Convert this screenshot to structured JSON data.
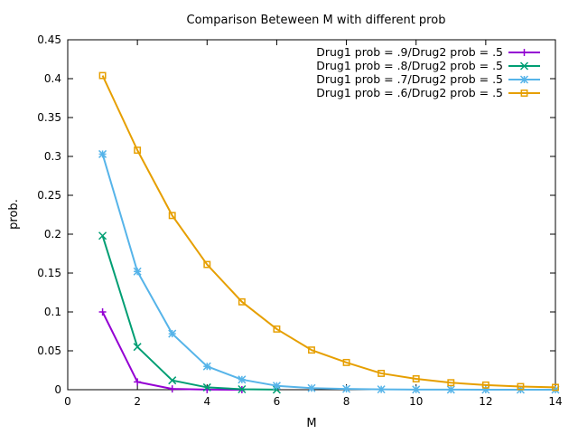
{
  "chart_data": {
    "type": "line",
    "title": "Comparison Beteween M with different prob",
    "xlabel": "M",
    "ylabel": "prob.",
    "xlim": [
      0,
      14
    ],
    "ylim": [
      0,
      0.45
    ],
    "xticks": [
      "0",
      "2",
      "4",
      "6",
      "8",
      "10",
      "12",
      "14"
    ],
    "yticks": [
      "0",
      "0.05",
      "0.1",
      "0.15",
      "0.2",
      "0.25",
      "0.3",
      "0.35",
      "0.4",
      "0.45"
    ],
    "grid": false,
    "legend_position": "top-right",
    "series": [
      {
        "name": "Drug1 prob = .9/Drug2 prob = .5",
        "color": "#9400d3",
        "marker": "plus",
        "x": [
          1,
          2,
          3,
          4,
          5
        ],
        "y": [
          0.1,
          0.01,
          0.001,
          0.0001,
          0.0
        ]
      },
      {
        "name": "Drug1 prob = .8/Drug2 prob = .5",
        "color": "#009e73",
        "marker": "cross",
        "x": [
          1,
          2,
          3,
          4,
          5,
          6
        ],
        "y": [
          0.198,
          0.055,
          0.012,
          0.003,
          0.0006,
          0.0001
        ]
      },
      {
        "name": "Drug1 prob = .7/Drug2 prob = .5",
        "color": "#56b4e9",
        "marker": "star",
        "x": [
          1,
          2,
          3,
          4,
          5,
          6,
          7,
          8,
          9,
          10,
          11,
          12,
          13,
          14
        ],
        "y": [
          0.303,
          0.152,
          0.072,
          0.03,
          0.013,
          0.005,
          0.002,
          0.001,
          0.0004,
          0.0002,
          0.0001,
          0.0,
          0.0,
          0.0
        ]
      },
      {
        "name": "Drug1 prob = .6/Drug2 prob = .5",
        "color": "#e69f00",
        "marker": "square",
        "x": [
          1,
          2,
          3,
          4,
          5,
          6,
          7,
          8,
          9,
          10,
          11,
          12,
          13,
          14
        ],
        "y": [
          0.404,
          0.308,
          0.224,
          0.161,
          0.113,
          0.078,
          0.051,
          0.035,
          0.021,
          0.014,
          0.009,
          0.006,
          0.004,
          0.003
        ]
      }
    ]
  }
}
